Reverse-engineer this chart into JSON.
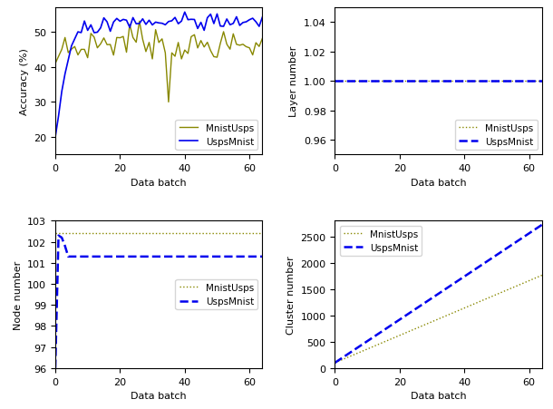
{
  "olive_color": "#888800",
  "blue_color": "#0000EE",
  "label_mnist_usps": "MnistUsps",
  "label_usps_mnist": "UspsMnist",
  "xlabel": "Data batch",
  "ylabels": [
    "Accuracy (%)",
    "Layer number",
    "Node number",
    "Cluster number"
  ],
  "top_left": {
    "xlim": [
      0,
      64
    ],
    "ylim": [
      15,
      57
    ]
  },
  "top_right": {
    "xlim": [
      0,
      64
    ],
    "ylim": [
      0.95,
      1.05
    ]
  },
  "bottom_left": {
    "xlim": [
      0,
      64
    ],
    "ylim": [
      96,
      103
    ]
  },
  "bottom_right": {
    "xlim": [
      0,
      64
    ],
    "ylim": [
      0,
      2800
    ]
  }
}
